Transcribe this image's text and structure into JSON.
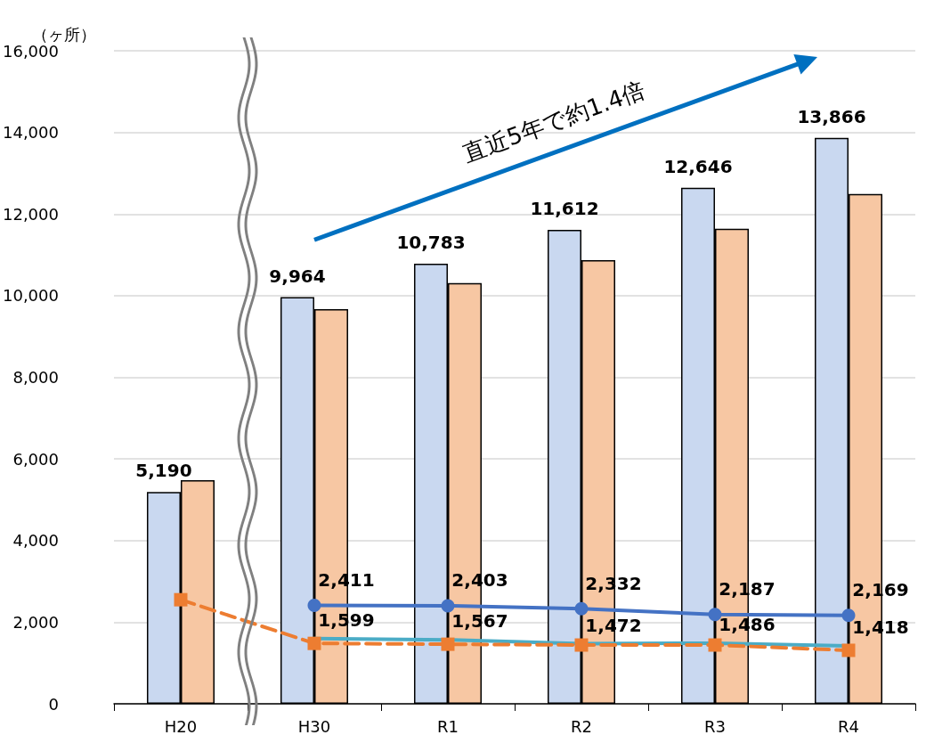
{
  "chart_data": {
    "type": "bar",
    "ylabel": "（ヶ所）",
    "categories": [
      "H20",
      "H30",
      "R1",
      "R2",
      "R3",
      "R4"
    ],
    "ylim": [
      0,
      16000
    ],
    "yticks": [
      {
        "value": 0,
        "label": "0"
      },
      {
        "value": 2000,
        "label": "2,000"
      },
      {
        "value": 4000,
        "label": "4,000"
      },
      {
        "value": 6000,
        "label": "6,000"
      },
      {
        "value": 8000,
        "label": "8,000"
      },
      {
        "value": 10000,
        "label": "10,000"
      },
      {
        "value": 12000,
        "label": "12,000"
      },
      {
        "value": 14000,
        "label": "14,000"
      },
      {
        "value": 16000,
        "label": "16,000"
      }
    ],
    "grid": "y",
    "annotations": [
      "直近5年で約1.4倍"
    ],
    "series": [
      {
        "color": "#c9d8f0",
        "values": [
          5190,
          9964,
          10783,
          11612,
          12646,
          13866
        ],
        "value_labels": [
          "5,190",
          "9,964",
          "10,783",
          "11,612",
          "12,646",
          "13,866"
        ]
      },
      {
        "color": "#f7c7a3",
        "values": [
          5480,
          9670,
          10310,
          10870,
          11640,
          12490
        ]
      },
      {
        "type": "line",
        "color": "#4472c4",
        "marker": "circle",
        "line_style": "solid",
        "values": [
          null,
          2411,
          2403,
          2332,
          2187,
          2169
        ],
        "value_labels": [
          null,
          "2,411",
          "2,403",
          "2,332",
          "2,187",
          "2,169"
        ]
      },
      {
        "type": "line",
        "color": "#4bacc6",
        "marker": "none",
        "line_style": "solid",
        "values": [
          null,
          1599,
          1567,
          1472,
          1486,
          1418
        ],
        "value_labels": [
          null,
          "1,599",
          "1,567",
          "1,472",
          "1,486",
          "1,418"
        ]
      },
      {
        "type": "line",
        "color": "#ed7d31",
        "marker": "square",
        "line_style": "dashed",
        "values": [
          2550,
          1480,
          1460,
          1440,
          1440,
          1310
        ]
      }
    ]
  }
}
